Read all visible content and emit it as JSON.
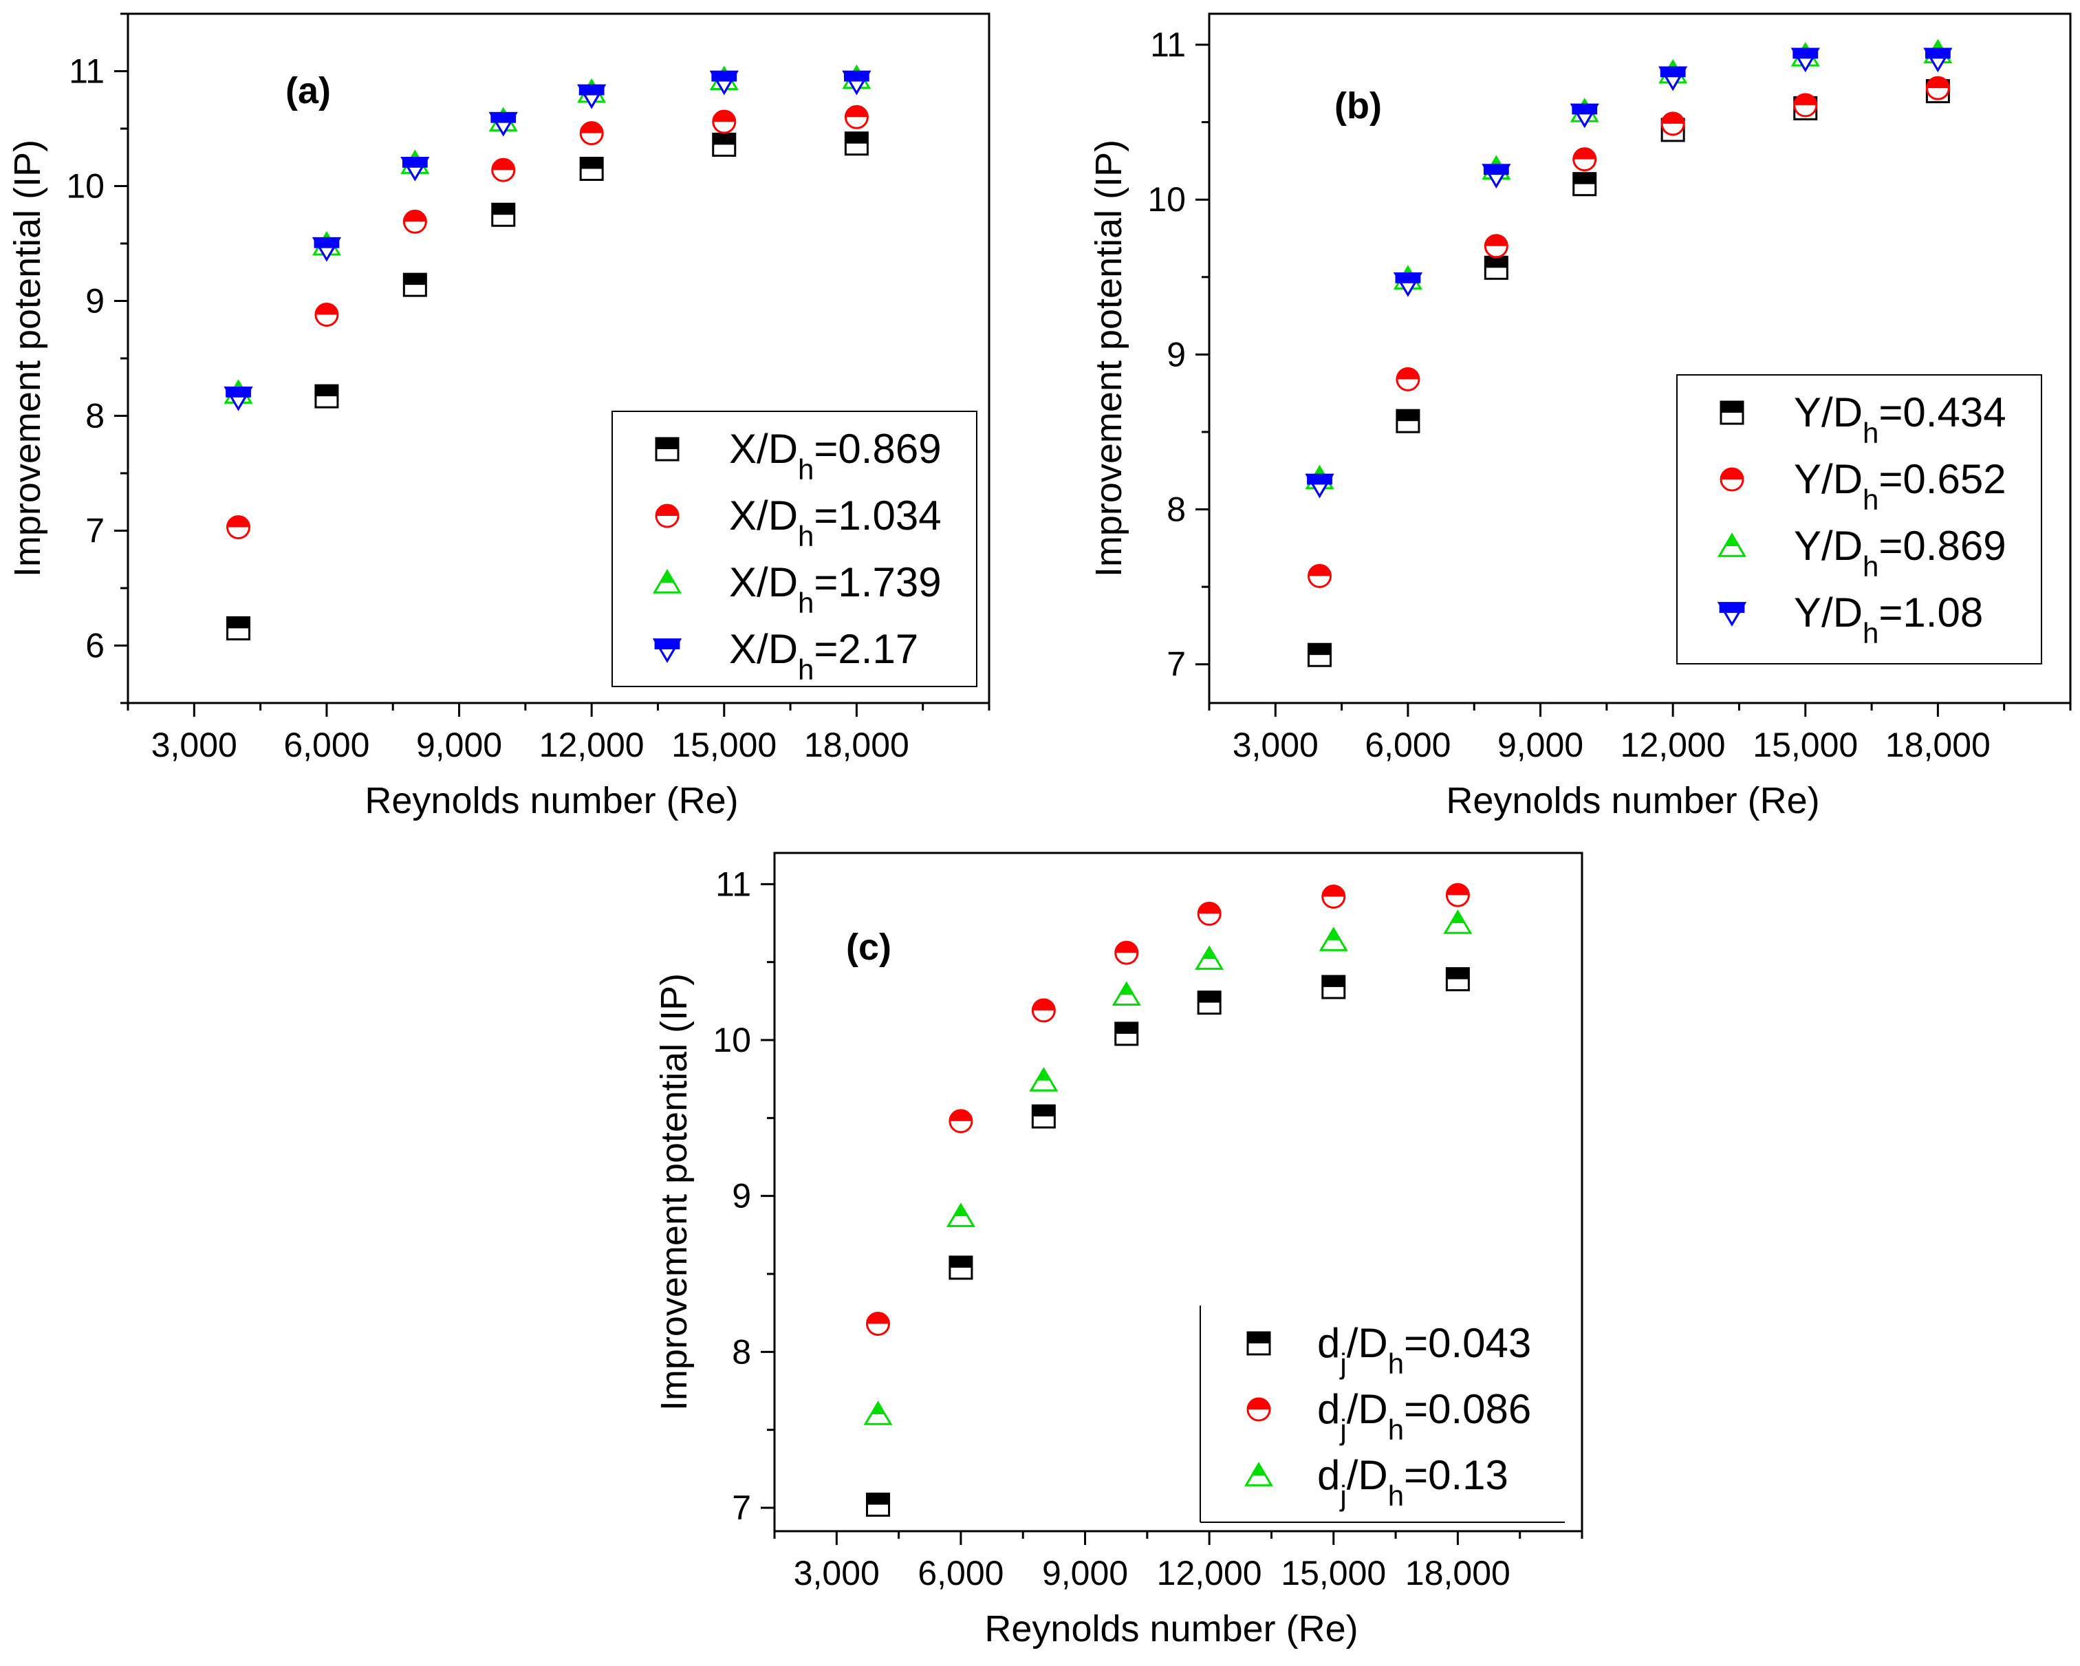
{
  "chart_data": [
    {
      "type": "scatter",
      "panel_label": "(a)",
      "xlabel": "Reynolds number (Re)",
      "ylabel": "Improvement potential (IP)",
      "xlim": [
        1500,
        21000
      ],
      "ylim": [
        5.5,
        11.5
      ],
      "xticks": [
        3000,
        6000,
        9000,
        12000,
        15000,
        18000
      ],
      "xtick_labels": [
        "3,000",
        "6,000",
        "9,000",
        "12,000",
        "15,000",
        "18,000"
      ],
      "yticks": [
        6,
        7,
        8,
        9,
        10,
        11
      ],
      "legend_position": "bottom-right",
      "series": [
        {
          "name": "X/Dh=0.869",
          "label_main": "X/D",
          "label_sub": "h",
          "label_suffix": "=0.869",
          "marker": "square-half",
          "color": "#000000",
          "x": [
            4000,
            6000,
            8000,
            10000,
            12000,
            15000,
            18000
          ],
          "y": [
            6.15,
            8.17,
            9.14,
            9.75,
            10.15,
            10.36,
            10.37
          ]
        },
        {
          "name": "X/Dh=1.034",
          "label_main": "X/D",
          "label_sub": "h",
          "label_suffix": "=1.034",
          "marker": "circle-half",
          "color": "#ff0000",
          "x": [
            4000,
            6000,
            8000,
            10000,
            12000,
            15000,
            18000
          ],
          "y": [
            7.03,
            8.88,
            9.69,
            10.14,
            10.46,
            10.56,
            10.6
          ]
        },
        {
          "name": "X/Dh=1.739",
          "label_main": "X/D",
          "label_sub": "h",
          "label_suffix": "=1.739",
          "marker": "triangle-up-half",
          "color": "#00dd00",
          "x": [
            4000,
            6000,
            8000,
            10000,
            12000,
            15000,
            18000
          ],
          "y": [
            8.2,
            9.49,
            10.2,
            10.57,
            10.82,
            10.93,
            10.94
          ]
        },
        {
          "name": "X/Dh=2.17",
          "label_main": "X/D",
          "label_sub": "h",
          "label_suffix": "=2.17",
          "marker": "triangle-down-half",
          "color": "#0000ff",
          "x": [
            4000,
            6000,
            8000,
            10000,
            12000,
            15000,
            18000
          ],
          "y": [
            8.16,
            9.46,
            10.16,
            10.55,
            10.79,
            10.91,
            10.91
          ]
        }
      ]
    },
    {
      "type": "scatter",
      "panel_label": "(b)",
      "xlabel": "Reynolds number (Re)",
      "ylabel": "Improvement potential (IP)",
      "xlim": [
        1500,
        21000
      ],
      "ylim": [
        6.75,
        11.2
      ],
      "xticks": [
        3000,
        6000,
        9000,
        12000,
        15000,
        18000
      ],
      "xtick_labels": [
        "3,000",
        "6,000",
        "9,000",
        "12,000",
        "15,000",
        "18,000"
      ],
      "yticks": [
        7,
        8,
        9,
        10,
        11
      ],
      "legend_position": "bottom-right",
      "series": [
        {
          "name": "Y/Dh=0.434",
          "label_main": "Y/D",
          "label_sub": "h",
          "label_suffix": "=0.434",
          "marker": "square-half",
          "color": "#000000",
          "x": [
            4000,
            6000,
            8000,
            10000,
            12000,
            15000,
            18000
          ],
          "y": [
            7.06,
            8.57,
            9.56,
            10.1,
            10.45,
            10.59,
            10.7
          ]
        },
        {
          "name": "Y/Dh=0.652",
          "label_main": "Y/D",
          "label_sub": "h",
          "label_suffix": "=0.652",
          "marker": "circle-half",
          "color": "#ff0000",
          "x": [
            4000,
            6000,
            8000,
            10000,
            12000,
            15000,
            18000
          ],
          "y": [
            7.57,
            8.84,
            9.7,
            10.26,
            10.49,
            10.61,
            10.72
          ]
        },
        {
          "name": "Y/Dh=0.869",
          "label_main": "Y/D",
          "label_sub": "h",
          "label_suffix": "=0.869",
          "marker": "triangle-up-half",
          "color": "#00dd00",
          "x": [
            4000,
            6000,
            8000,
            10000,
            12000,
            15000,
            18000
          ],
          "y": [
            8.2,
            9.49,
            10.2,
            10.57,
            10.82,
            10.93,
            10.95
          ]
        },
        {
          "name": "Y/Dh=1.08",
          "label_main": "Y/D",
          "label_sub": "h",
          "label_suffix": "=1.08",
          "marker": "triangle-down-half",
          "color": "#0000ff",
          "x": [
            4000,
            6000,
            8000,
            10000,
            12000,
            15000,
            18000
          ],
          "y": [
            8.16,
            9.46,
            10.16,
            10.55,
            10.79,
            10.91,
            10.91
          ]
        }
      ]
    },
    {
      "type": "scatter",
      "panel_label": "(c)",
      "xlabel": "Reynolds number (Re)",
      "ylabel": "Improvement potential (IP)",
      "xlim": [
        1500,
        21000
      ],
      "ylim": [
        6.85,
        11.2
      ],
      "xticks": [
        3000,
        6000,
        9000,
        12000,
        15000,
        18000
      ],
      "xtick_labels": [
        "3,000",
        "6,000",
        "9,000",
        "12,000",
        "15,000",
        "18,000"
      ],
      "yticks": [
        7,
        8,
        9,
        10,
        11
      ],
      "legend_position": "bottom-right",
      "series": [
        {
          "name": "dj/Dh=0.043",
          "label_main": "d",
          "label_sub": "j",
          "label_mid": "/D",
          "label_sub2": "h",
          "label_suffix": "=0.043",
          "marker": "square-half",
          "color": "#000000",
          "x": [
            4000,
            6000,
            8000,
            10000,
            12000,
            15000,
            18000
          ],
          "y": [
            7.02,
            8.54,
            9.51,
            10.04,
            10.24,
            10.34,
            10.39
          ]
        },
        {
          "name": "dj/Dh=0.086",
          "label_main": "d",
          "label_sub": "j",
          "label_mid": "/D",
          "label_sub2": "h",
          "label_suffix": "=0.086",
          "marker": "circle-half",
          "color": "#ff0000",
          "x": [
            4000,
            6000,
            8000,
            10000,
            12000,
            15000,
            18000
          ],
          "y": [
            8.18,
            9.48,
            10.19,
            10.56,
            10.81,
            10.92,
            10.93
          ]
        },
        {
          "name": "dj/Dh=0.13",
          "label_main": "d",
          "label_sub": "j",
          "label_mid": "/D",
          "label_sub2": "h",
          "label_suffix": "=0.13",
          "marker": "triangle-up-half",
          "color": "#00dd00",
          "x": [
            4000,
            6000,
            8000,
            10000,
            12000,
            15000,
            18000
          ],
          "y": [
            7.6,
            8.87,
            9.74,
            10.29,
            10.52,
            10.64,
            10.75
          ]
        }
      ]
    }
  ]
}
